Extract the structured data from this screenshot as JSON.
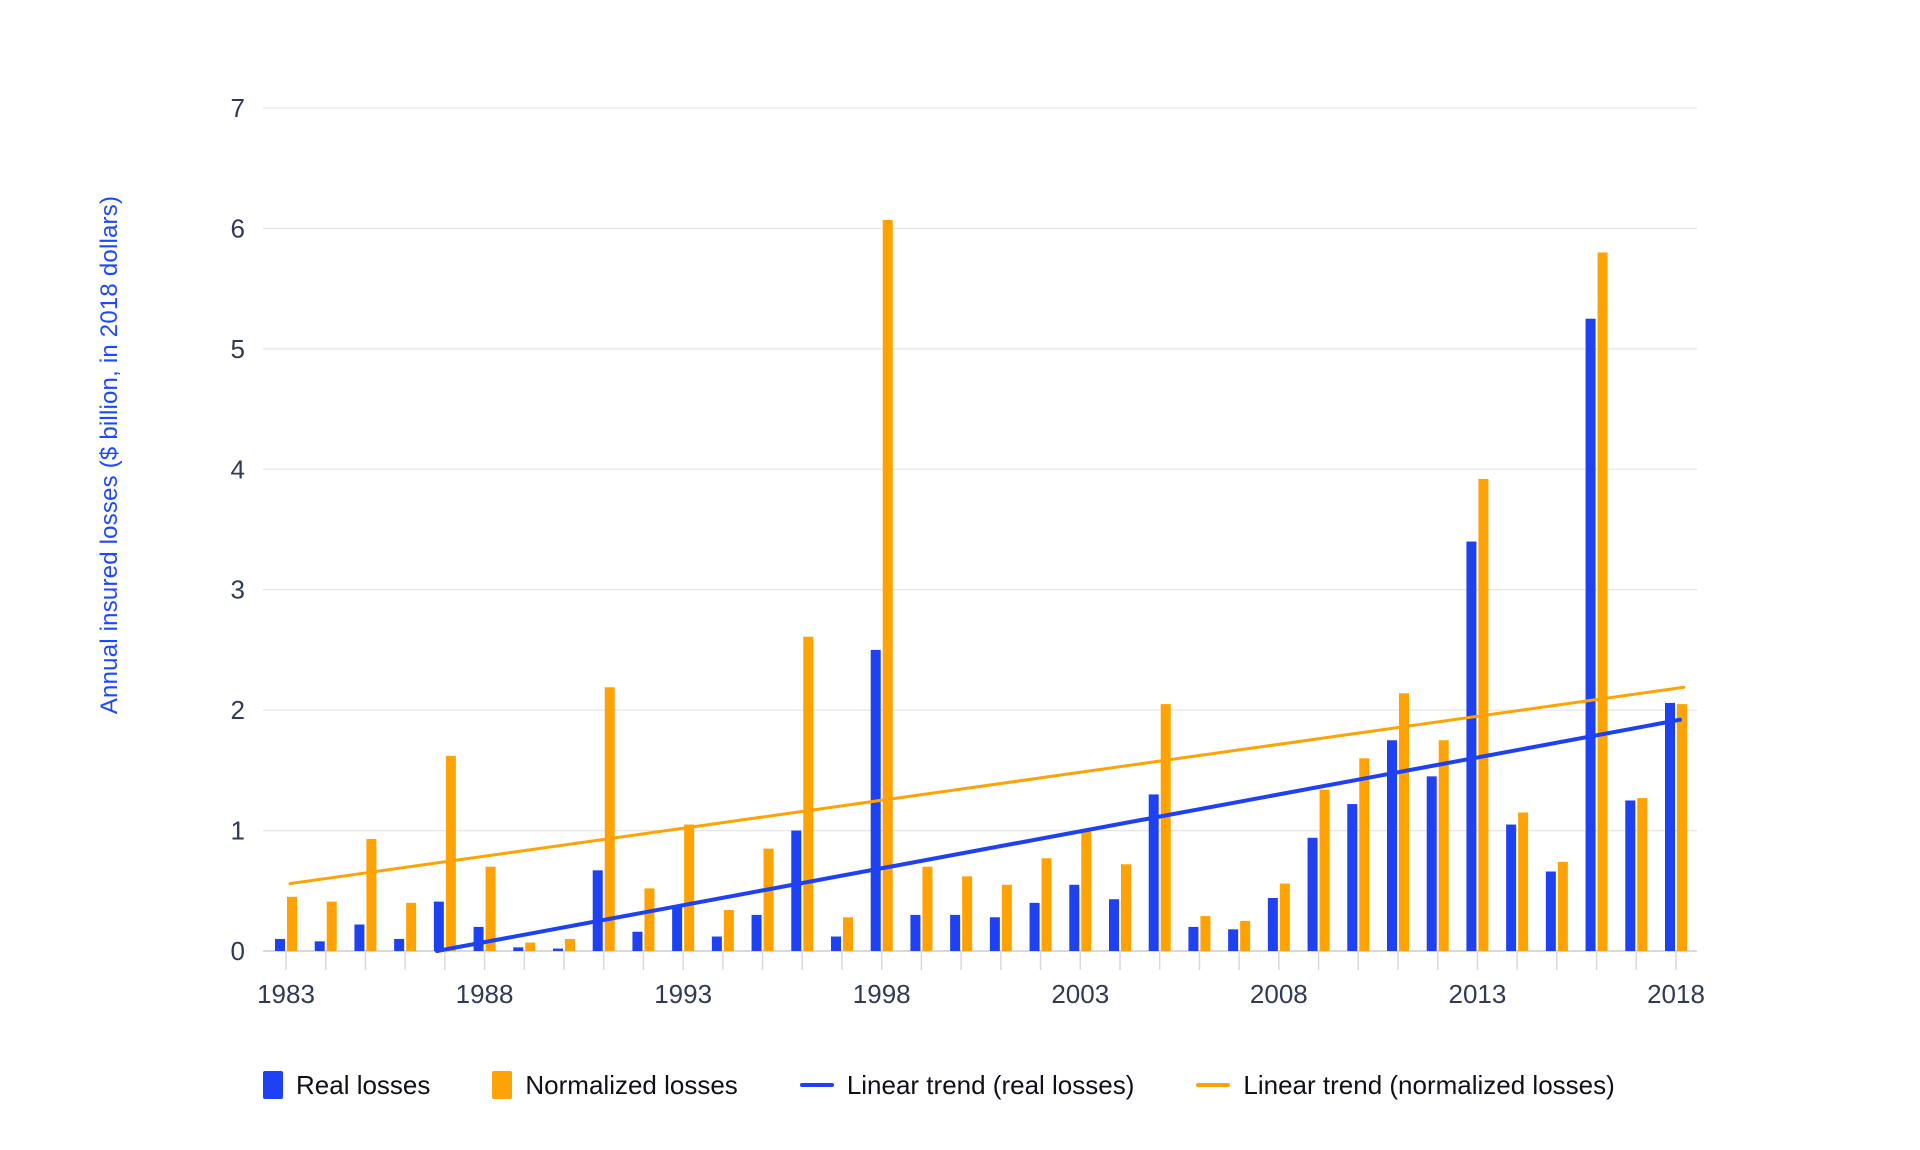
{
  "y_axis": {
    "title": "Annual insured losses ($ billion, in 2018 dollars)",
    "ticks": [
      0,
      1,
      2,
      3,
      4,
      5,
      6,
      7
    ]
  },
  "x_axis": {
    "tick_years": [
      1983,
      1988,
      1993,
      1998,
      2003,
      2008,
      2013,
      2018
    ]
  },
  "legend": [
    {
      "label": "Real losses",
      "marker": "swatch",
      "color": "#1e41f4"
    },
    {
      "label": "Normalized losses",
      "marker": "swatch",
      "color": "#ffa203"
    },
    {
      "label": "Linear trend (real losses)",
      "marker": "line",
      "color": "#1e41f4"
    },
    {
      "label": "Linear trend (normalized losses)",
      "marker": "line",
      "color": "#ffa203"
    }
  ],
  "colors": {
    "real": "#1e41f4",
    "normalized": "#ffa203",
    "axis_title": "#1b49ff",
    "axis_text": "#2f3a57",
    "grid": "#e6e6e6",
    "baseline": "#c9cdd3",
    "tick": "#d9d9d9",
    "background": "#ffffff"
  },
  "chart_data": {
    "type": "bar",
    "title": "",
    "xlabel": "",
    "ylabel": "Annual insured losses ($ billion, in 2018 dollars)",
    "ylim": [
      0,
      7
    ],
    "grid": true,
    "legend_position": "bottom",
    "categories": [
      1983,
      1984,
      1985,
      1986,
      1987,
      1988,
      1989,
      1990,
      1991,
      1992,
      1993,
      1994,
      1995,
      1996,
      1997,
      1998,
      1999,
      2000,
      2001,
      2002,
      2003,
      2004,
      2005,
      2006,
      2007,
      2008,
      2009,
      2010,
      2011,
      2012,
      2013,
      2014,
      2015,
      2016,
      2017,
      2018
    ],
    "series": [
      {
        "name": "Real losses",
        "color": "#1e41f4",
        "values": [
          0.1,
          0.08,
          0.22,
          0.1,
          0.41,
          0.2,
          0.03,
          0.02,
          0.67,
          0.16,
          0.37,
          0.12,
          0.3,
          1.0,
          0.12,
          2.5,
          0.3,
          0.3,
          0.28,
          0.4,
          0.55,
          0.43,
          1.3,
          0.2,
          0.18,
          0.44,
          0.94,
          1.22,
          1.75,
          1.45,
          3.4,
          1.05,
          0.66,
          5.25,
          1.25,
          2.06
        ]
      },
      {
        "name": "Normalized losses",
        "color": "#ffa203",
        "values": [
          0.45,
          0.41,
          0.93,
          0.4,
          1.62,
          0.7,
          0.07,
          0.1,
          2.19,
          0.52,
          1.05,
          0.34,
          0.85,
          2.61,
          0.28,
          6.07,
          0.7,
          0.62,
          0.55,
          0.77,
          1.0,
          0.72,
          2.05,
          0.29,
          0.25,
          0.56,
          1.34,
          1.6,
          2.14,
          1.75,
          3.92,
          1.15,
          0.74,
          5.8,
          1.27,
          2.05
        ]
      }
    ],
    "trend_lines": [
      {
        "name": "Linear trend (real losses)",
        "color": "#1e41f4",
        "width": 4,
        "points": [
          [
            1986.8,
            0.0
          ],
          [
            2018.1,
            1.92
          ]
        ]
      },
      {
        "name": "Linear trend (normalized losses)",
        "color": "#ffa203",
        "width": 3,
        "points": [
          [
            1983.1,
            0.56
          ],
          [
            2018.2,
            2.19
          ]
        ]
      }
    ]
  }
}
